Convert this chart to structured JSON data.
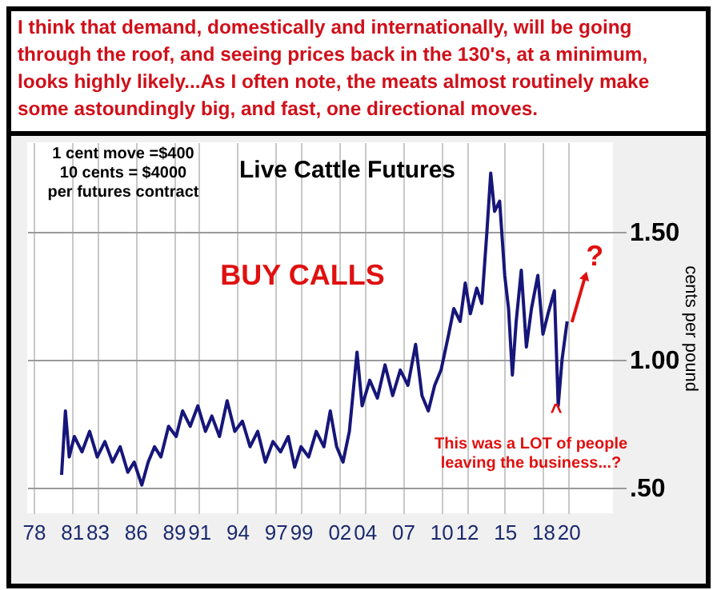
{
  "chart_data": {
    "type": "line",
    "title": "Live Cattle Futures",
    "ylabel": "cents per pound",
    "annotations": [
      "I think that demand, domestically and internationally, will be going through the roof, and seeing prices back in the 130's, at a minimum, looks highly likely...As I often note, the meats almost routinely make some astoundingly big, and fast, one directional moves.",
      "1 cent move =$400\n10 cents = $4000\nper futures contract",
      "BUY CALLS",
      "?",
      "^",
      "This was a LOT of people\nleaving the business...?"
    ],
    "x": [
      1980.2,
      1980.5,
      1980.8,
      1981.2,
      1981.8,
      1982.4,
      1983.0,
      1983.6,
      1984.2,
      1984.8,
      1985.4,
      1985.9,
      1986.5,
      1987.0,
      1987.5,
      1988.0,
      1988.6,
      1989.2,
      1989.7,
      1990.3,
      1990.9,
      1991.5,
      1992.0,
      1992.6,
      1993.2,
      1993.8,
      1994.4,
      1995.0,
      1995.6,
      1996.2,
      1996.8,
      1997.4,
      1998.0,
      1998.5,
      1999.0,
      1999.6,
      2000.2,
      2000.8,
      2001.3,
      2001.8,
      2002.3,
      2002.8,
      2003.4,
      2003.8,
      2004.4,
      2005.0,
      2005.6,
      2006.2,
      2006.8,
      2007.4,
      2008.0,
      2008.5,
      2009.0,
      2009.5,
      2010.0,
      2010.6,
      2011.0,
      2011.5,
      2011.9,
      2012.3,
      2012.8,
      2013.2,
      2013.6,
      2013.9,
      2014.2,
      2014.6,
      2015.0,
      2015.3,
      2015.6,
      2015.9,
      2016.3,
      2016.7,
      2017.1,
      2017.6,
      2018.0,
      2018.4,
      2018.9,
      2019.2,
      2019.5,
      2019.9
    ],
    "series": [
      {
        "color": "#16167a",
        "values": [
          0.55,
          0.8,
          0.62,
          0.7,
          0.64,
          0.72,
          0.62,
          0.68,
          0.6,
          0.66,
          0.56,
          0.6,
          0.51,
          0.6,
          0.66,
          0.62,
          0.74,
          0.7,
          0.8,
          0.74,
          0.82,
          0.72,
          0.78,
          0.7,
          0.84,
          0.72,
          0.76,
          0.66,
          0.72,
          0.6,
          0.68,
          0.64,
          0.7,
          0.58,
          0.66,
          0.62,
          0.72,
          0.66,
          0.8,
          0.66,
          0.6,
          0.72,
          1.03,
          0.82,
          0.92,
          0.85,
          0.98,
          0.86,
          0.96,
          0.9,
          1.06,
          0.86,
          0.8,
          0.9,
          0.96,
          1.1,
          1.2,
          1.15,
          1.3,
          1.18,
          1.28,
          1.22,
          1.5,
          1.73,
          1.58,
          1.62,
          1.33,
          1.2,
          0.94,
          1.15,
          1.35,
          1.05,
          1.2,
          1.33,
          1.1,
          1.18,
          1.27,
          0.82,
          1.0,
          1.15
        ]
      }
    ],
    "xlim": [
      1977.5,
      2023.5
    ],
    "xticks": [
      {
        "value": 1978,
        "label": "78"
      },
      {
        "value": 1981,
        "label": "81"
      },
      {
        "value": 1983,
        "label": "83"
      },
      {
        "value": 1986,
        "label": "86"
      },
      {
        "value": 1989,
        "label": "89"
      },
      {
        "value": 1991,
        "label": "91"
      },
      {
        "value": 1994,
        "label": "94"
      },
      {
        "value": 1997,
        "label": "97"
      },
      {
        "value": 1999,
        "label": "99"
      },
      {
        "value": 2002,
        "label": "02"
      },
      {
        "value": 2004,
        "label": "04"
      },
      {
        "value": 2007,
        "label": "07"
      },
      {
        "value": 2010,
        "label": "10"
      },
      {
        "value": 2012,
        "label": "12"
      },
      {
        "value": 2015,
        "label": "15"
      },
      {
        "value": 2018,
        "label": "18"
      },
      {
        "value": 2020,
        "label": "20"
      }
    ],
    "ylim": [
      0.4,
      1.85
    ],
    "yticks": [
      {
        "value": 0.5,
        "label": ".50"
      },
      {
        "value": 1.0,
        "label": "1.00"
      },
      {
        "value": 1.5,
        "label": "1.50"
      }
    ],
    "grid": true,
    "marker": "none",
    "line_style": "solid"
  }
}
